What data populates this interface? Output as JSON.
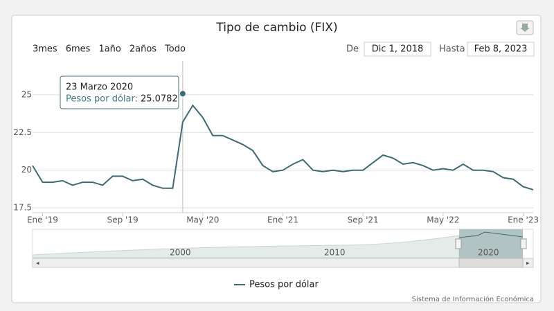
{
  "chart_data": {
    "type": "line",
    "title": "Tipo de cambio (FIX)",
    "range_buttons": [
      "3mes",
      "6mes",
      "1año",
      "2años",
      "Todo"
    ],
    "from_label": "De",
    "from_date": "Dic 1, 2018",
    "to_label": "Hasta",
    "to_date": "Feb 8, 2023",
    "x": [
      "2018-12",
      "2019-01",
      "2019-02",
      "2019-03",
      "2019-04",
      "2019-05",
      "2019-06",
      "2019-07",
      "2019-08",
      "2019-09",
      "2019-10",
      "2019-11",
      "2019-12",
      "2020-01",
      "2020-02",
      "2020-03",
      "2020-04",
      "2020-05",
      "2020-06",
      "2020-07",
      "2020-08",
      "2020-09",
      "2020-10",
      "2020-11",
      "2020-12",
      "2021-01",
      "2021-02",
      "2021-03",
      "2021-04",
      "2021-05",
      "2021-06",
      "2021-07",
      "2021-08",
      "2021-09",
      "2021-10",
      "2021-11",
      "2021-12",
      "2022-01",
      "2022-02",
      "2022-03",
      "2022-04",
      "2022-05",
      "2022-06",
      "2022-07",
      "2022-08",
      "2022-09",
      "2022-10",
      "2022-11",
      "2022-12",
      "2023-01",
      "2023-02"
    ],
    "series": [
      {
        "name": "Pesos por dólar",
        "color": "#3d6b73",
        "values": [
          20.3,
          19.2,
          19.2,
          19.3,
          19.0,
          19.2,
          19.2,
          19.0,
          19.6,
          19.6,
          19.3,
          19.4,
          19.0,
          18.8,
          18.8,
          23.2,
          24.3,
          23.5,
          22.3,
          22.3,
          22.0,
          21.7,
          21.3,
          20.3,
          19.9,
          20.0,
          20.4,
          20.7,
          20.0,
          19.9,
          20.0,
          19.9,
          20.0,
          20.0,
          20.5,
          21.0,
          20.8,
          20.4,
          20.5,
          20.3,
          20.0,
          20.1,
          20.0,
          20.4,
          20.0,
          20.0,
          19.9,
          19.5,
          19.4,
          18.9,
          18.7
        ]
      }
    ],
    "xlim": [
      "2018-12",
      "2023-02"
    ],
    "xticks": [
      {
        "value": "2019-01",
        "label": "Ene '19"
      },
      {
        "value": "2019-09",
        "label": "Sep '19"
      },
      {
        "value": "2020-05",
        "label": "May '20"
      },
      {
        "value": "2021-01",
        "label": "Ene '21"
      },
      {
        "value": "2021-09",
        "label": "Sep '21"
      },
      {
        "value": "2022-05",
        "label": "May '22"
      },
      {
        "value": "2023-01",
        "label": "Ene '23"
      }
    ],
    "ylim": [
      17.18,
      27.25
    ],
    "yticks": [
      17.5,
      20,
      22.5,
      25
    ],
    "grid": true,
    "tooltip": {
      "title": "23 Marzo 2020",
      "label": "Pesos por dólar:",
      "value": 25.0782,
      "x": "2020-03"
    },
    "navigator_labels": [
      "2000",
      "2010",
      "2020"
    ],
    "credits": "Sistema de Información Económica"
  }
}
